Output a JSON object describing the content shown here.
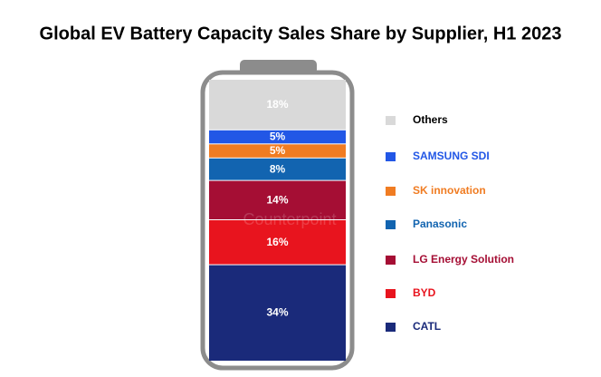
{
  "chart_data": {
    "type": "stacked_bar",
    "title": "Global EV Battery Capacity Sales Share by Supplier, H1 2023",
    "watermark": "Counterpoint",
    "ylim": [
      0,
      100
    ],
    "series": [
      {
        "name": "Others",
        "color": "#d9d9d9",
        "values": [
          18
        ],
        "value_labels": [
          "18%"
        ]
      },
      {
        "name": "SAMSUNG SDI",
        "color": "#2257e6",
        "values": [
          5
        ],
        "value_labels": [
          "5%"
        ]
      },
      {
        "name": "SK innovation",
        "color": "#f07c22",
        "values": [
          5
        ],
        "value_labels": [
          "5%"
        ]
      },
      {
        "name": "Panasonic",
        "color": "#1264b0",
        "values": [
          8
        ],
        "value_labels": [
          "8%"
        ]
      },
      {
        "name": "LG Energy Solution",
        "color": "#a50e34",
        "values": [
          14
        ],
        "value_labels": [
          "14%"
        ]
      },
      {
        "name": "BYD",
        "color": "#e8141e",
        "values": [
          16
        ],
        "value_labels": [
          "16%"
        ]
      },
      {
        "name": "CATL",
        "color": "#1a2a7a",
        "values": [
          34
        ],
        "value_labels": [
          "34%"
        ]
      }
    ]
  }
}
